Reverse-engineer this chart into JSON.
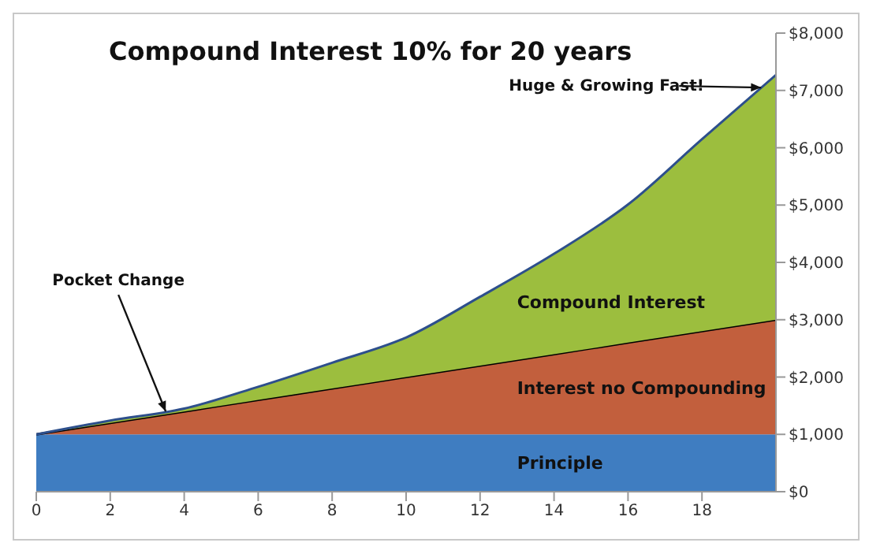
{
  "chart_data": {
    "type": "area",
    "title": "Compound Interest 10% for 20 years",
    "stacked": true,
    "x": [
      0,
      2,
      4,
      6,
      8,
      10,
      12,
      14,
      16,
      18,
      20
    ],
    "series": [
      {
        "name": "Principle",
        "color": "#3f7dc1",
        "values": [
          1000,
          1000,
          1000,
          1000,
          1000,
          1000,
          1000,
          1000,
          1000,
          1000,
          1000
        ]
      },
      {
        "name": "Interest no Compounding",
        "color": "#c25f3d",
        "values": [
          0,
          200,
          400,
          600,
          800,
          1000,
          1200,
          1400,
          1600,
          1800,
          2000
        ]
      },
      {
        "name": "Compound Interest",
        "color": "#9cbe3e",
        "values": [
          0,
          40,
          50,
          230,
          450,
          690,
          1200,
          1750,
          2410,
          3350,
          4270
        ]
      }
    ],
    "xlim": [
      0,
      20
    ],
    "xticks": [
      0,
      2,
      4,
      6,
      8,
      10,
      12,
      14,
      16,
      18
    ],
    "ylim": [
      0,
      8000
    ],
    "yticks": [
      {
        "value": 0,
        "label": "$0"
      },
      {
        "value": 1000,
        "label": "$1,000"
      },
      {
        "value": 2000,
        "label": "$2,000"
      },
      {
        "value": 3000,
        "label": "$3,000"
      },
      {
        "value": 4000,
        "label": "$4,000"
      },
      {
        "value": 5000,
        "label": "$5,000"
      },
      {
        "value": 6000,
        "label": "$6,000"
      },
      {
        "value": 7000,
        "label": "$7,000"
      },
      {
        "value": 8000,
        "label": "$8,000"
      }
    ],
    "annotations": [
      {
        "text": "Pocket Change",
        "x": 3.5,
        "y": 1400
      },
      {
        "text": "Huge & Growing Fast!",
        "x": 19.6,
        "y": 7050
      }
    ],
    "grid": false,
    "legend": false
  }
}
